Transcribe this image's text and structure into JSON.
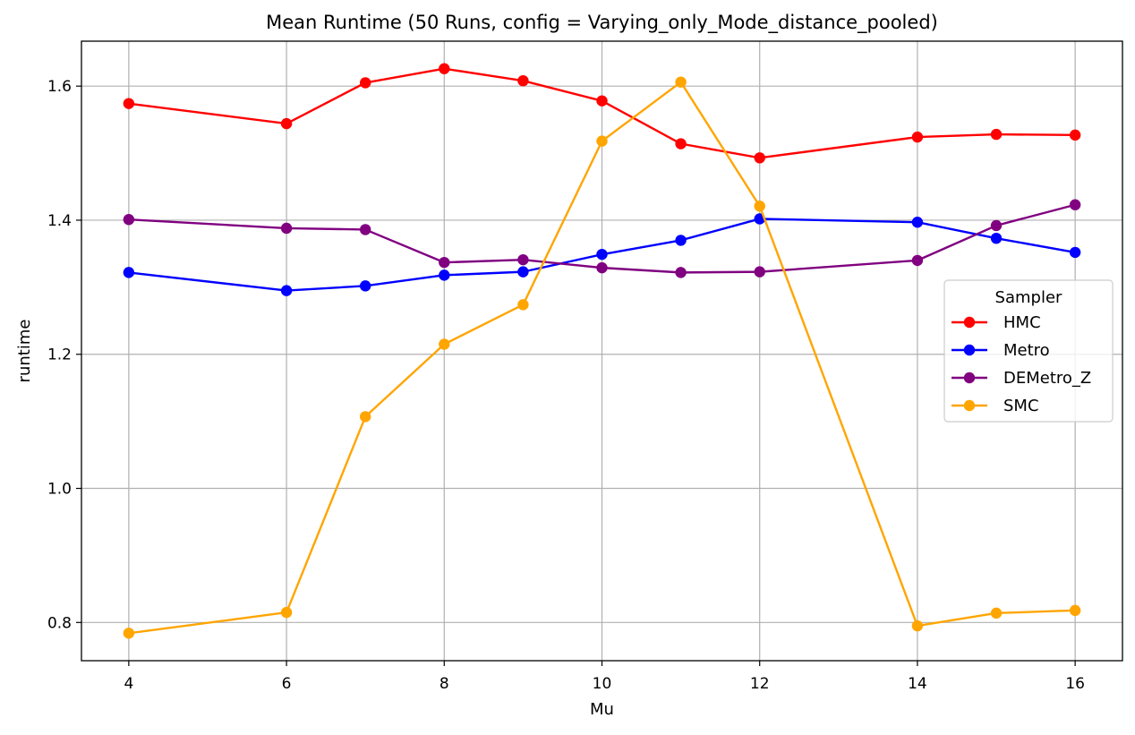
{
  "chart_data": {
    "type": "line",
    "title": "Mean Runtime (50 Runs, config = Varying_only_Mode_distance_pooled)",
    "xlabel": "Mu",
    "ylabel": "runtime",
    "x": [
      4,
      6,
      7,
      8,
      9,
      10,
      11,
      12,
      14,
      15,
      16
    ],
    "xlim": [
      3.4,
      16.6
    ],
    "ylim": [
      0.743,
      1.667
    ],
    "xticks": [
      4,
      6,
      8,
      10,
      12,
      14,
      16
    ],
    "xtick_labels": [
      "4",
      "6",
      "8",
      "10",
      "12",
      "14",
      "16"
    ],
    "yticks": [
      0.8,
      1.0,
      1.2,
      1.4,
      1.6
    ],
    "ytick_labels": [
      "0.8",
      "1.0",
      "1.2",
      "1.4",
      "1.6"
    ],
    "grid": true,
    "legend": {
      "title": "Sampler",
      "placement": "center-right"
    },
    "series": [
      {
        "name": "HMC",
        "color": "#ff0000",
        "values": [
          1.574,
          1.544,
          1.605,
          1.626,
          1.608,
          1.578,
          1.514,
          1.493,
          1.524,
          1.528,
          1.527
        ]
      },
      {
        "name": "Metro",
        "color": "#0000ff",
        "values": [
          1.322,
          1.295,
          1.302,
          1.318,
          1.323,
          1.349,
          1.37,
          1.402,
          1.397,
          1.373,
          1.352
        ]
      },
      {
        "name": "DEMetro_Z",
        "color": "#800080",
        "values": [
          1.401,
          1.388,
          1.386,
          1.337,
          1.341,
          1.329,
          1.322,
          1.323,
          1.34,
          1.392,
          1.423
        ]
      },
      {
        "name": "SMC",
        "color": "#ffa500",
        "values": [
          0.784,
          0.815,
          1.107,
          1.215,
          1.274,
          1.518,
          1.606,
          1.421,
          0.795,
          0.814,
          0.818
        ]
      }
    ]
  }
}
